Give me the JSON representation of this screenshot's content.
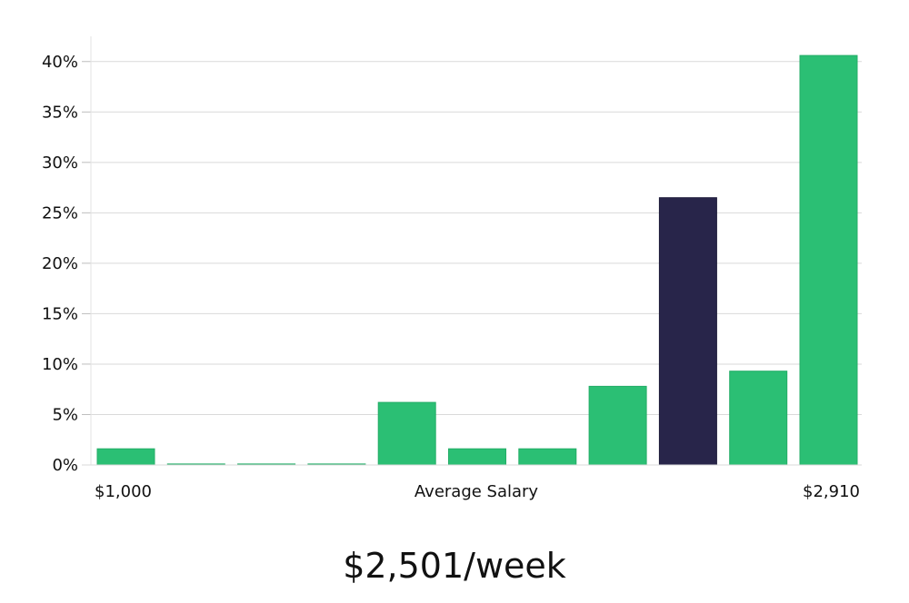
{
  "chart_data": {
    "type": "bar",
    "title": "",
    "xlabel": "Average Salary",
    "ylabel": "",
    "x_min_label": "$1,000",
    "x_max_label": "$2,910",
    "values": [
      1.6,
      0.1,
      0.1,
      0.1,
      6.2,
      1.6,
      1.6,
      7.8,
      26.5,
      9.3,
      40.6
    ],
    "highlight_index": 8,
    "ylim": [
      0,
      42.5
    ],
    "yticks": [
      0,
      5,
      10,
      15,
      20,
      25,
      30,
      35,
      40
    ],
    "ytick_labels": [
      "0%",
      "5%",
      "10%",
      "15%",
      "20%",
      "25%",
      "30%",
      "35%",
      "40%"
    ],
    "y_unit": "%",
    "grid": true,
    "colors": {
      "bar": "#2bbf74",
      "highlight": "#28254a",
      "grid": "#d9d9d9",
      "axis": "#bdbdbd"
    }
  },
  "headline": "$2,501/week"
}
